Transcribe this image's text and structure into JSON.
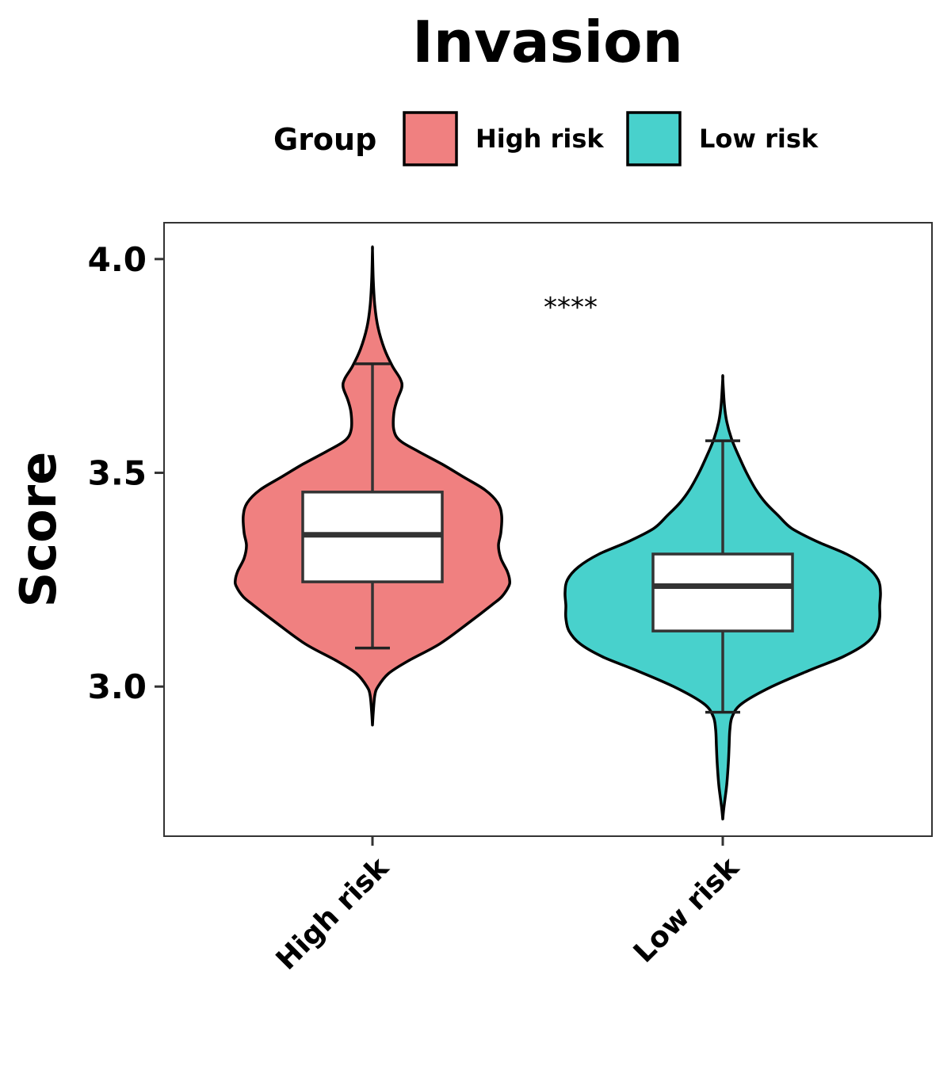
{
  "chart_data": {
    "type": "violin",
    "title": "Invasion",
    "xlabel": "",
    "ylabel": "Score",
    "ylim": [
      2.65,
      4.085
    ],
    "yticks": [
      "3.0",
      "3.5",
      "4.0"
    ],
    "categories": [
      "High risk",
      "Low risk"
    ],
    "legend": {
      "title": "Group",
      "position": "top",
      "items": [
        {
          "label": "High risk",
          "color": "#F08080"
        },
        {
          "label": "Low risk",
          "color": "#48D1CC"
        }
      ]
    },
    "grid": false,
    "annotation": "****",
    "series": [
      {
        "name": "High risk",
        "color": "#F08080",
        "violin": {
          "min": 2.91,
          "max": 4.02
        },
        "box": {
          "whisker_low": 3.09,
          "q1": 3.245,
          "median": 3.355,
          "q3": 3.455,
          "whisker_high": 3.755
        }
      },
      {
        "name": "Low risk",
        "color": "#48D1CC",
        "violin": {
          "min": 2.69,
          "max": 3.72
        },
        "box": {
          "whisker_low": 2.94,
          "q1": 3.13,
          "median": 3.235,
          "q3": 3.31,
          "whisker_high": 3.575
        }
      }
    ]
  }
}
